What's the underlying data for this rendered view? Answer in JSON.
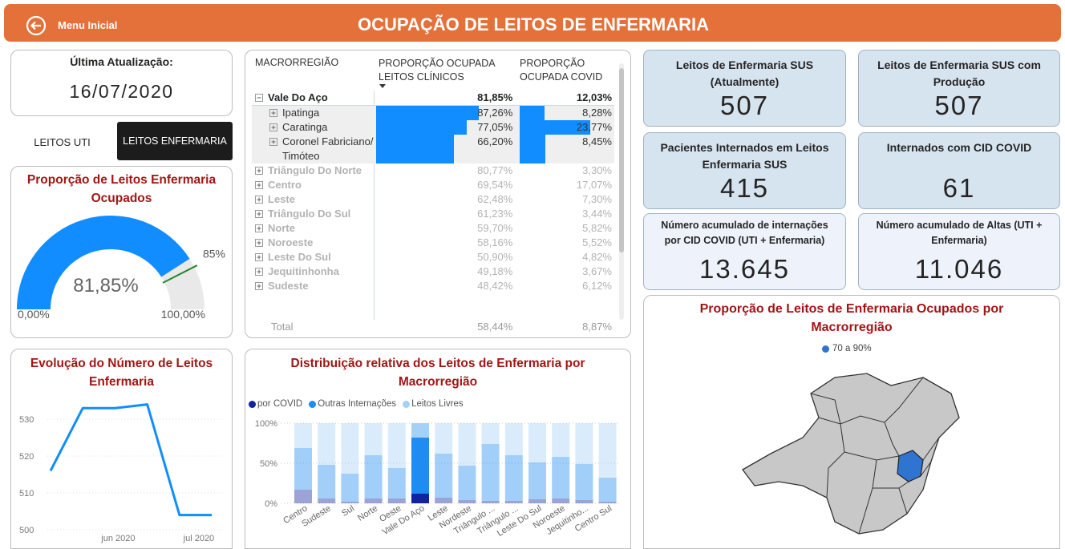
{
  "header": {
    "back_label": "Menu Inicial",
    "title": "OCUPAÇÃO DE LEITOS DE ENFERMARIA"
  },
  "update": {
    "label": "Última Atualização:",
    "date": "16/07/2020"
  },
  "tabs": [
    "LEITOS UTI",
    "LEITOS ENFERMARIA"
  ],
  "table": {
    "columns": [
      "MACRORREGIÃO",
      "PROPORÇÃO OCUPADA LEITOS CLÍNICOS",
      "PROPORÇÃO OCUPADA COVID"
    ],
    "group": {
      "name": "Vale Do Aço",
      "values": [
        81.85,
        12.03
      ],
      "value_labels": [
        "81,85%",
        "12,03%"
      ],
      "children": [
        {
          "name": "Ipatinga",
          "values": [
            87.26,
            8.28
          ],
          "value_labels": [
            "87,26%",
            "8,28%"
          ]
        },
        {
          "name": "Caratinga",
          "values": [
            77.05,
            23.77
          ],
          "value_labels": [
            "77,05%",
            "23,77%"
          ]
        },
        {
          "name": "Coronel Fabriciano/Timóteo",
          "values": [
            66.2,
            8.45
          ],
          "value_labels": [
            "66,20%",
            "8,45%"
          ]
        }
      ]
    },
    "rows": [
      {
        "name": "Triângulo Do Norte",
        "values": [
          80.77,
          3.3
        ],
        "value_labels": [
          "80,77%",
          "3,30%"
        ]
      },
      {
        "name": "Centro",
        "values": [
          69.54,
          17.07
        ],
        "value_labels": [
          "69,54%",
          "17,07%"
        ]
      },
      {
        "name": "Leste",
        "values": [
          62.48,
          7.3
        ],
        "value_labels": [
          "62,48%",
          "7,30%"
        ]
      },
      {
        "name": "Triângulo Do Sul",
        "values": [
          61.23,
          3.44
        ],
        "value_labels": [
          "61,23%",
          "3,44%"
        ]
      },
      {
        "name": "Norte",
        "values": [
          59.7,
          5.82
        ],
        "value_labels": [
          "59,70%",
          "5,82%"
        ]
      },
      {
        "name": "Noroeste",
        "values": [
          58.16,
          5.52
        ],
        "value_labels": [
          "58,16%",
          "5,52%"
        ]
      },
      {
        "name": "Leste Do Sul",
        "values": [
          50.9,
          4.82
        ],
        "value_labels": [
          "50,90%",
          "4,82%"
        ]
      },
      {
        "name": "Jequitinhonha",
        "values": [
          49.18,
          3.67
        ],
        "value_labels": [
          "49,18%",
          "3,67%"
        ]
      },
      {
        "name": "Sudeste",
        "values": [
          48.42,
          6.12
        ],
        "value_labels": [
          "48,42%",
          "6,12%"
        ]
      }
    ],
    "total": {
      "name": "Total",
      "values": [
        58.44,
        8.87
      ],
      "value_labels": [
        "58,44%",
        "8,87%"
      ]
    }
  },
  "kpis": [
    {
      "title": "Leitos de Enfermaria SUS (Atualmente)",
      "value": "507"
    },
    {
      "title": "Leitos de Enfermaria SUS com Produção",
      "value": "507"
    },
    {
      "title": "Pacientes Internados em Leitos Enfermaria SUS",
      "value": "415"
    },
    {
      "title": "Internados com CID COVID",
      "value": "61"
    },
    {
      "title": "Número acumulado de internações por CID COVID (UTI + Enfermaria)",
      "value": "13.645"
    },
    {
      "title": "Número acumulado de Altas (UTI + Enfermaria)",
      "value": "11.046"
    }
  ],
  "chart_data": [
    {
      "type": "gauge",
      "title": "Proporção de Leitos Enfermaria Ocupados",
      "value": 81.85,
      "value_label": "81,85%",
      "min": {
        "value": 0,
        "label": "0,00%"
      },
      "max": {
        "value": 100,
        "label": "100,00%"
      },
      "target": {
        "value": 85,
        "label": "85%"
      },
      "color": "#118dff",
      "target_color": "#1f8a2e"
    },
    {
      "type": "line",
      "title": "Evolução do Número de Leitos Enfermaria",
      "categories": [
        null,
        null,
        null,
        null,
        null,
        null
      ],
      "values": [
        516,
        533,
        533,
        534,
        504,
        504
      ],
      "color": "#118dff",
      "xlim": [
        0,
        5
      ],
      "xticks": [
        {
          "value": 2.1,
          "label": "jun 2020"
        },
        {
          "value": 4.6,
          "label": "jul 2020"
        }
      ],
      "ylim": [
        500,
        535
      ],
      "yticks": [
        500,
        510,
        520,
        530
      ],
      "grid": true
    },
    {
      "type": "stacked_bar",
      "title": "Distribuição relativa dos Leitos de Enfermaria por Macrorregião",
      "categories": [
        "Centro",
        "Sudeste",
        "Sul",
        "Norte",
        "Oeste",
        "Vale Do Aço",
        "Leste",
        "Nordeste",
        "Triângulo ...",
        "Triângulo ...",
        "Leste Do Sul",
        "Noroeste",
        "Jequitinho...",
        "Centro Sul"
      ],
      "series": [
        {
          "name": "por COVID",
          "color": "#12239e",
          "values": [
            17,
            6,
            2,
            6,
            6,
            12,
            7,
            4,
            3,
            3,
            5,
            6,
            4,
            2
          ]
        },
        {
          "name": "Outras Internações",
          "color": "#1e8cf0",
          "values": [
            52,
            42,
            35,
            54,
            38,
            70,
            55,
            43,
            71,
            57,
            46,
            52,
            45,
            30
          ]
        },
        {
          "name": "Leitos Livres",
          "color": "#a6d1f6",
          "values": [
            31,
            52,
            63,
            40,
            56,
            18,
            38,
            53,
            26,
            40,
            49,
            42,
            51,
            68
          ]
        }
      ],
      "ylim": [
        0,
        100
      ],
      "yticks": [
        {
          "value": 0,
          "label": "0%"
        },
        {
          "value": 50,
          "label": "50%"
        },
        {
          "value": 100,
          "label": "100%"
        }
      ],
      "grid": true,
      "legend": "top-left"
    },
    {
      "type": "map",
      "title": "Proporção de Leitos de Enfermaria Ocupados por Macrorregião",
      "legend": [
        {
          "name": "70 a 90%",
          "color": "#2f74d0"
        }
      ]
    }
  ]
}
